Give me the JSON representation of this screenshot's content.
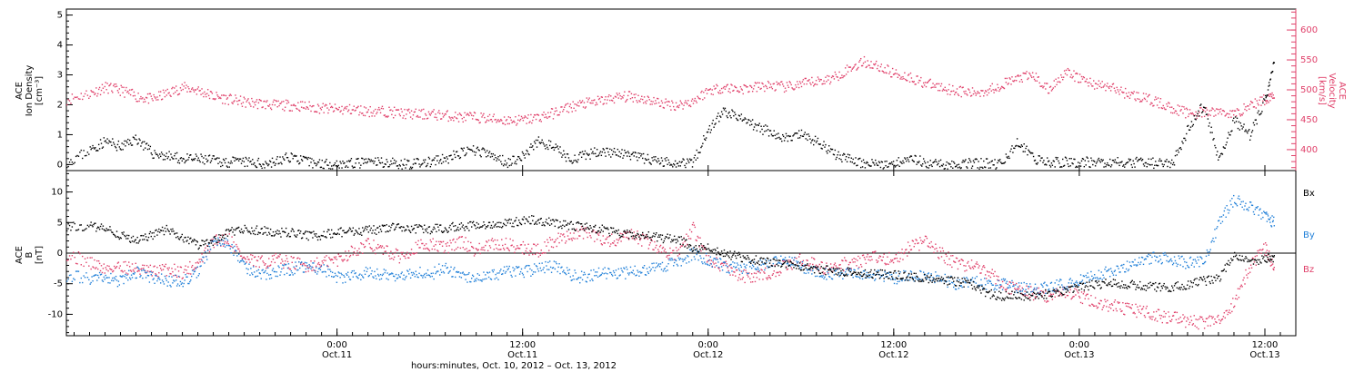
{
  "colors": {
    "density": "#000000",
    "velocity": "#e0406a",
    "bx": "#000000",
    "by": "#1f7fd8",
    "bz": "#e0406a",
    "frame": "#000000"
  },
  "xaxis": {
    "label": "hours:minutes, Oct. 10, 2012 – Oct. 13, 2012",
    "range_hours": [
      -17.5,
      62
    ],
    "ticks": [
      {
        "h": 0,
        "time": "0:00",
        "date": "Oct.11"
      },
      {
        "h": 12,
        "time": "12:00",
        "date": "Oct.11"
      },
      {
        "h": 24,
        "time": "0:00",
        "date": "Oct.12"
      },
      {
        "h": 36,
        "time": "12:00",
        "date": "Oct.12"
      },
      {
        "h": 48,
        "time": "0:00",
        "date": "Oct.13"
      },
      {
        "h": 60,
        "time": "12:00",
        "date": "Oct.13"
      }
    ]
  },
  "panel1": {
    "left_label": [
      "ACE",
      "Ion Density",
      "[cm⁻³]"
    ],
    "right_label": [
      "ACE",
      "Velocity",
      "[km/s]"
    ]
  },
  "panel2": {
    "left_label": [
      "ACE",
      "B",
      "[nT]"
    ],
    "legend": [
      "Bx",
      "By",
      "Bz"
    ]
  },
  "chart_data": [
    {
      "type": "scatter",
      "title": "",
      "xlabel": "hours:minutes, Oct. 10, 2012 – Oct. 13, 2012",
      "ylabel": "ACE Ion Density [cm⁻³]",
      "ylim": [
        -0.2,
        5.2
      ],
      "yticks": [
        0,
        1,
        2,
        3,
        4,
        5
      ],
      "y2label": "ACE Velocity [km/s]",
      "y2lim": [
        365,
        635
      ],
      "y2ticks": [
        400,
        450,
        500,
        550,
        600
      ],
      "series": [
        {
          "name": "Ion Density",
          "axis": "left",
          "color": "#000000",
          "x": [
            -17.5,
            -16,
            -15,
            -14,
            -13,
            -12,
            -11,
            -10,
            -9,
            -8,
            -7,
            -6,
            -5,
            -4,
            -3,
            -2,
            -1,
            0,
            1,
            2,
            3,
            4,
            5,
            6,
            7,
            8,
            9,
            10,
            11,
            12,
            13,
            14,
            15,
            16,
            17,
            18,
            19,
            20,
            21,
            22,
            23,
            24,
            25,
            26,
            27,
            28,
            29,
            30,
            31,
            32,
            33,
            34,
            35,
            36,
            37,
            38,
            39,
            40,
            41,
            42,
            43,
            44,
            45,
            46,
            47,
            48,
            49,
            50,
            51,
            52,
            53,
            54,
            55,
            56,
            57,
            58,
            59,
            60,
            60.6
          ],
          "y": [
            0.1,
            0.5,
            0.8,
            0.6,
            0.9,
            0.4,
            0.3,
            0.2,
            0.2,
            0.15,
            0.1,
            0.1,
            0.05,
            0.1,
            0.3,
            0.1,
            0.05,
            0.05,
            0.05,
            0.1,
            0.1,
            0.05,
            0.05,
            0.1,
            0.2,
            0.4,
            0.5,
            0.3,
            0.1,
            0.3,
            0.8,
            0.6,
            0.2,
            0.3,
            0.5,
            0.4,
            0.3,
            0.2,
            0.1,
            0.1,
            0.1,
            1.2,
            1.8,
            1.6,
            1.3,
            1.1,
            0.9,
            1.0,
            0.8,
            0.4,
            0.2,
            0.05,
            0.05,
            0.05,
            0.3,
            0.05,
            0.05,
            0.05,
            0.05,
            0.05,
            0.05,
            0.8,
            0.2,
            0.1,
            0.1,
            0.1,
            0.1,
            0.1,
            0.1,
            0.1,
            0.05,
            0.05,
            1.2,
            2.0,
            0.2,
            1.5,
            1.0,
            2.2,
            3.5
          ]
        },
        {
          "name": "Velocity",
          "axis": "right",
          "color": "#e0406a",
          "x": [
            -17.5,
            -16,
            -15,
            -14,
            -13,
            -12,
            -11,
            -10,
            -9,
            -8,
            -7,
            -6,
            -5,
            -4,
            -3,
            -2,
            -1,
            0,
            1,
            2,
            3,
            4,
            5,
            6,
            7,
            8,
            9,
            10,
            11,
            12,
            13,
            14,
            15,
            16,
            17,
            18,
            19,
            20,
            21,
            22,
            23,
            24,
            25,
            26,
            27,
            28,
            29,
            30,
            31,
            32,
            33,
            34,
            35,
            36,
            37,
            38,
            39,
            40,
            41,
            42,
            43,
            44,
            45,
            46,
            47,
            48,
            49,
            50,
            51,
            52,
            53,
            54,
            55,
            56,
            57,
            58,
            59,
            60,
            60.6
          ],
          "y": [
            485,
            495,
            505,
            500,
            490,
            485,
            495,
            505,
            500,
            490,
            485,
            480,
            478,
            475,
            475,
            473,
            470,
            468,
            468,
            465,
            465,
            462,
            460,
            460,
            458,
            455,
            455,
            452,
            450,
            450,
            455,
            462,
            472,
            478,
            482,
            488,
            490,
            485,
            478,
            475,
            482,
            500,
            505,
            502,
            505,
            508,
            505,
            510,
            515,
            520,
            535,
            548,
            540,
            528,
            522,
            512,
            505,
            500,
            495,
            500,
            510,
            520,
            525,
            500,
            530,
            520,
            510,
            505,
            495,
            488,
            480,
            470,
            462,
            462,
            465,
            460,
            475,
            485,
            495
          ]
        }
      ]
    },
    {
      "type": "scatter",
      "title": "",
      "xlabel": "hours:minutes, Oct. 10, 2012 – Oct. 13, 2012",
      "ylabel": "ACE B [nT]",
      "ylim": [
        -13.5,
        13.5
      ],
      "yticks": [
        -10,
        -5,
        0,
        5,
        10
      ],
      "legend_position": "right",
      "series": [
        {
          "name": "Bx",
          "color": "#000000",
          "x": [
            -17.5,
            -16,
            -15,
            -14,
            -13,
            -12,
            -11,
            -10,
            -9,
            -8,
            -7,
            -6,
            -5,
            -4,
            -3,
            -2,
            -1,
            0,
            1,
            2,
            3,
            4,
            5,
            6,
            7,
            8,
            9,
            10,
            11,
            12,
            13,
            14,
            15,
            16,
            17,
            18,
            19,
            20,
            21,
            22,
            23,
            24,
            25,
            26,
            27,
            28,
            29,
            30,
            31,
            32,
            33,
            34,
            35,
            36,
            37,
            38,
            39,
            40,
            41,
            42,
            43,
            44,
            45,
            46,
            47,
            48,
            49,
            50,
            51,
            52,
            53,
            54,
            55,
            56,
            57,
            58,
            59,
            60,
            60.6
          ],
          "y": [
            4.5,
            4.5,
            4.0,
            3.0,
            2.0,
            3.0,
            4.0,
            2.5,
            1.5,
            2.0,
            3.5,
            4.0,
            3.8,
            3.5,
            3.5,
            3.0,
            3.0,
            3.5,
            3.5,
            3.8,
            4.0,
            4.5,
            4.0,
            4.0,
            4.2,
            4.5,
            4.5,
            4.8,
            5.0,
            5.5,
            5.5,
            5.0,
            4.5,
            4.5,
            4.0,
            3.5,
            3.0,
            3.0,
            2.5,
            2.5,
            1.0,
            1.0,
            0.0,
            -0.5,
            -1.0,
            -1.5,
            -1.8,
            -2.0,
            -2.5,
            -2.8,
            -3.0,
            -3.2,
            -3.3,
            -3.5,
            -3.8,
            -4.0,
            -4.2,
            -4.5,
            -5.0,
            -6.5,
            -7.0,
            -6.8,
            -7.0,
            -6.5,
            -6.0,
            -5.5,
            -5.0,
            -4.8,
            -5.0,
            -5.2,
            -5.5,
            -5.5,
            -5.0,
            -4.5,
            -4.0,
            0.0,
            -1.0,
            -1.0,
            -0.5
          ]
        },
        {
          "name": "By",
          "color": "#1f7fd8",
          "x": [
            -17.5,
            -16,
            -15,
            -14,
            -13,
            -12,
            -11,
            -10,
            -9,
            -8,
            -7,
            -6,
            -5,
            -4,
            -3,
            -2,
            -1,
            0,
            1,
            2,
            3,
            4,
            5,
            6,
            7,
            8,
            9,
            10,
            11,
            12,
            13,
            14,
            15,
            16,
            17,
            18,
            19,
            20,
            21,
            22,
            23,
            24,
            25,
            26,
            27,
            28,
            29,
            30,
            31,
            32,
            33,
            34,
            35,
            36,
            37,
            38,
            39,
            40,
            41,
            42,
            43,
            44,
            45,
            46,
            47,
            48,
            49,
            50,
            51,
            52,
            53,
            54,
            55,
            56,
            57,
            58,
            59,
            60,
            60.6
          ],
          "y": [
            -3.5,
            -4.0,
            -4.0,
            -4.5,
            -3.0,
            -4.0,
            -4.5,
            -4.5,
            -3.0,
            2.5,
            1.5,
            -2.0,
            -3.5,
            -3.0,
            -2.5,
            -2.0,
            -2.5,
            -4.0,
            -3.5,
            -3.0,
            -3.5,
            -3.5,
            -3.0,
            -3.5,
            -2.0,
            -4.0,
            -4.0,
            -3.5,
            -3.0,
            -3.0,
            -2.5,
            -2.0,
            -3.5,
            -4.0,
            -3.0,
            -3.5,
            -3.0,
            -2.5,
            -2.0,
            -1.5,
            0.0,
            -1.0,
            -2.0,
            -2.5,
            -2.0,
            -1.5,
            -1.0,
            -2.0,
            -3.0,
            -3.5,
            -3.0,
            -3.5,
            -3.5,
            -4.0,
            -3.5,
            -3.5,
            -4.0,
            -5.0,
            -4.5,
            -5.0,
            -5.0,
            -5.5,
            -6.0,
            -5.5,
            -5.0,
            -4.5,
            -3.5,
            -3.0,
            -2.0,
            -1.0,
            -0.5,
            -1.0,
            -1.5,
            -1.5,
            5.0,
            9.0,
            7.5,
            6.0,
            5.0
          ]
        },
        {
          "name": "Bz",
          "color": "#e0406a",
          "x": [
            -17.5,
            -16,
            -15,
            -14,
            -13,
            -12,
            -11,
            -10,
            -9,
            -8,
            -7,
            -6,
            -5,
            -4,
            -3,
            -2,
            -1,
            0,
            1,
            2,
            3,
            4,
            5,
            6,
            7,
            8,
            9,
            10,
            11,
            12,
            13,
            14,
            15,
            16,
            17,
            18,
            19,
            20,
            21,
            22,
            23,
            24,
            25,
            26,
            27,
            28,
            29,
            30,
            31,
            32,
            33,
            34,
            35,
            36,
            37,
            38,
            39,
            40,
            41,
            42,
            43,
            44,
            45,
            46,
            47,
            48,
            49,
            50,
            51,
            52,
            53,
            54,
            55,
            56,
            57,
            58,
            59,
            60,
            60.6
          ],
          "y": [
            0.0,
            -1.5,
            -2.5,
            -2.0,
            -2.5,
            -3.0,
            -2.5,
            -3.0,
            -1.5,
            2.0,
            2.5,
            -1.0,
            -1.5,
            -1.0,
            -1.5,
            -2.0,
            -1.5,
            -1.0,
            0.5,
            1.5,
            0.5,
            -0.5,
            1.0,
            1.5,
            1.0,
            2.0,
            0.5,
            1.5,
            1.5,
            1.0,
            0.5,
            2.0,
            3.0,
            3.5,
            2.5,
            2.0,
            3.0,
            2.0,
            0.5,
            0.0,
            4.0,
            -1.0,
            -2.0,
            -3.5,
            -4.0,
            -3.0,
            -2.0,
            -1.0,
            -2.0,
            -2.5,
            -1.5,
            -1.0,
            -0.5,
            -1.0,
            1.0,
            2.0,
            0.0,
            -1.5,
            -2.0,
            -3.0,
            -5.0,
            -6.0,
            -6.5,
            -7.0,
            -6.0,
            -7.0,
            -8.0,
            -8.5,
            -9.0,
            -9.5,
            -10.0,
            -10.5,
            -11.0,
            -11.5,
            -10.5,
            -8.0,
            -2.0,
            1.0,
            -3.0
          ]
        }
      ]
    }
  ]
}
